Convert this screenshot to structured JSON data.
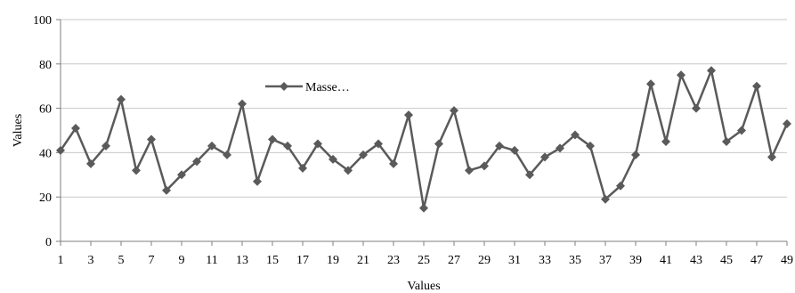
{
  "chart_data": {
    "type": "line",
    "title": "",
    "xlabel": "Values",
    "ylabel": "Values",
    "ylim": [
      0,
      100
    ],
    "y_ticks": [
      0,
      20,
      40,
      60,
      80,
      100
    ],
    "x_range": [
      1,
      49
    ],
    "x_tick_labels": [
      "1",
      "3",
      "5",
      "7",
      "9",
      "11",
      "13",
      "15",
      "17",
      "19",
      "21",
      "23",
      "25",
      "27",
      "29",
      "31",
      "33",
      "35",
      "37",
      "39",
      "41",
      "43",
      "45",
      "47",
      "49"
    ],
    "grid": "horizontal",
    "legend_placement": "upper-left inside plot",
    "series": [
      {
        "name": "Masse…",
        "color": "#5a5a5a",
        "marker": "diamond",
        "x": [
          1,
          2,
          3,
          4,
          5,
          6,
          7,
          8,
          9,
          10,
          11,
          12,
          13,
          14,
          15,
          16,
          17,
          18,
          19,
          20,
          21,
          22,
          23,
          24,
          25,
          26,
          27,
          28,
          29,
          30,
          31,
          32,
          33,
          34,
          35,
          36,
          37,
          38,
          39,
          40,
          41,
          42,
          43,
          44,
          45,
          46,
          47,
          48,
          49
        ],
        "values": [
          41,
          51,
          35,
          43,
          64,
          32,
          46,
          23,
          30,
          36,
          43,
          39,
          62,
          27,
          46,
          43,
          33,
          44,
          37,
          32,
          39,
          44,
          35,
          57,
          15,
          44,
          59,
          32,
          34,
          43,
          41,
          30,
          38,
          42,
          48,
          43,
          19,
          25,
          39,
          71,
          45,
          75,
          60,
          77,
          45,
          50,
          70,
          38,
          53
        ]
      }
    ]
  },
  "colors": {
    "axis": "#7f7f7f",
    "grid": "#c8c8c8",
    "series": "#5a5a5a"
  }
}
